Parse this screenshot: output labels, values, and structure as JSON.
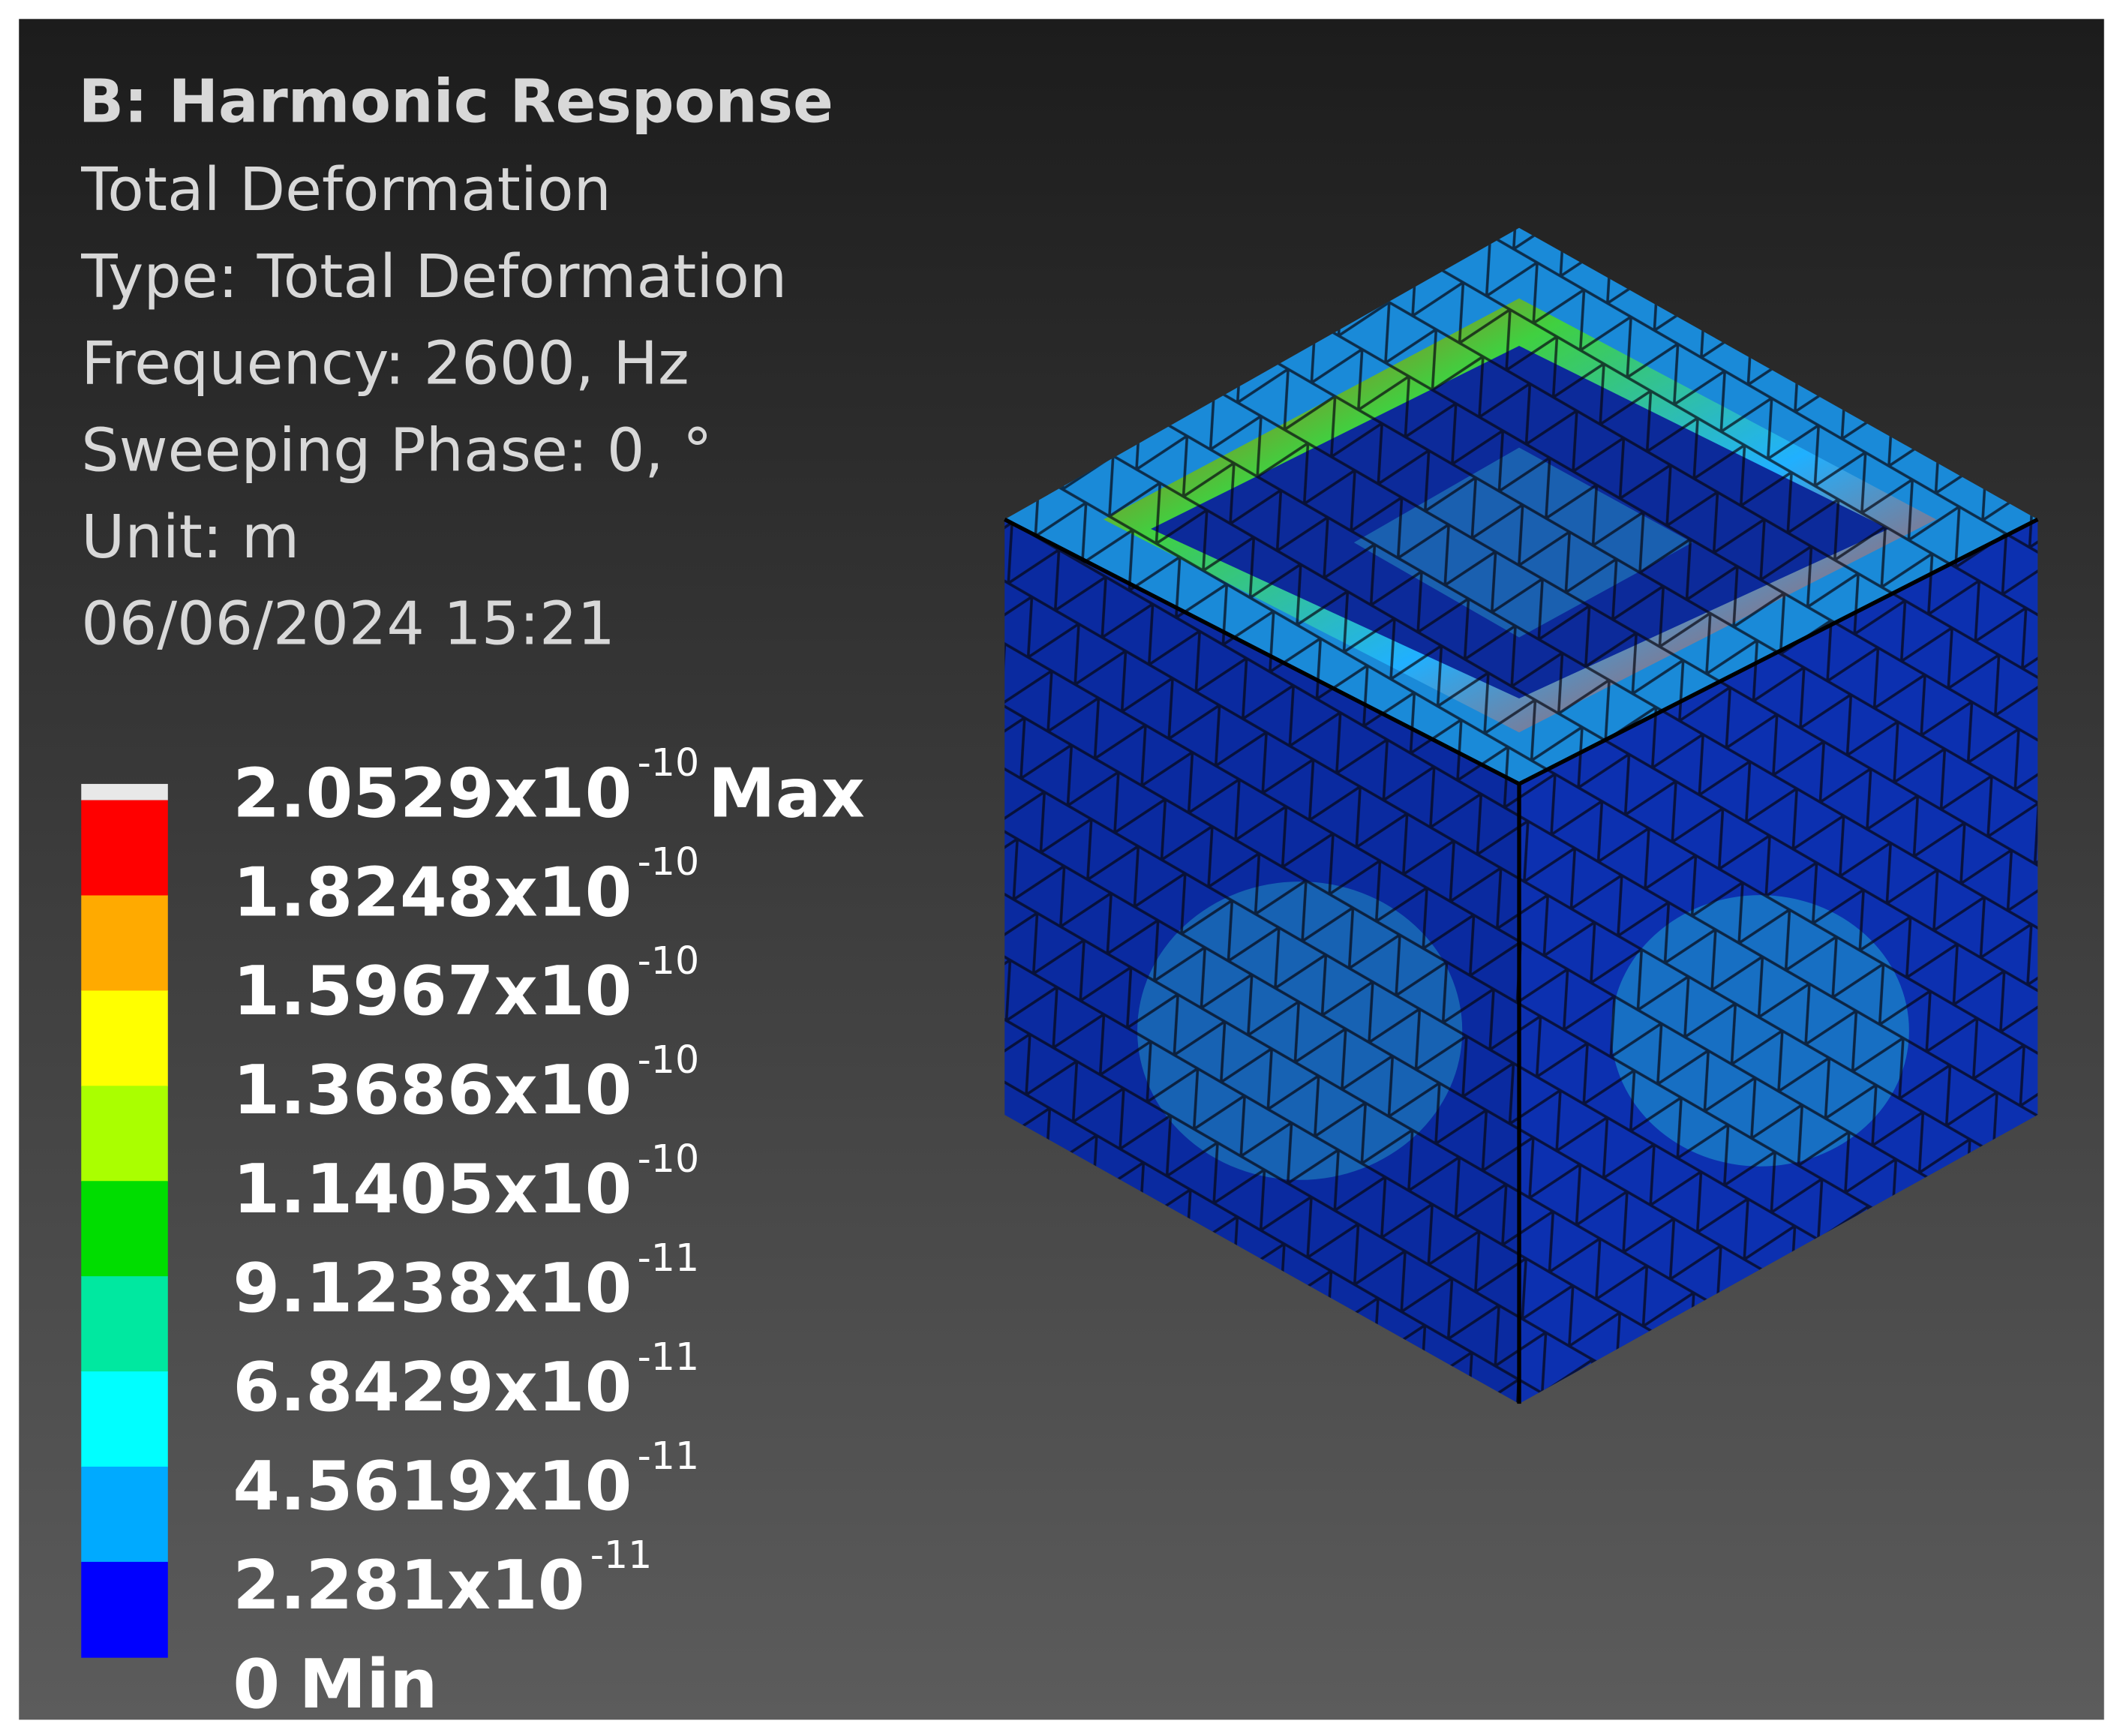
{
  "header": {
    "title": "B: Harmonic Response",
    "lines": [
      "Total Deformation",
      "Type: Total Deformation",
      "Frequency: 2600, Hz",
      "Sweeping Phase: 0, °",
      "Unit: m",
      "06/06/2024 15:21"
    ]
  },
  "legend": {
    "colors": [
      "#ff0000",
      "#ffaa00",
      "#ffff00",
      "#aaff00",
      "#00dd00",
      "#00e8a0",
      "#00ffff",
      "#00aaff",
      "#0000ff"
    ],
    "labels": [
      {
        "text": "2.0529x10",
        "exponent": "-10",
        "tag": "Max"
      },
      {
        "text": "1.8248x10",
        "exponent": "-10"
      },
      {
        "text": "1.5967x10",
        "exponent": "-10"
      },
      {
        "text": "1.3686x10",
        "exponent": "-10"
      },
      {
        "text": "1.1405x10",
        "exponent": "-10"
      },
      {
        "text": "9.1238x10",
        "exponent": "-11"
      },
      {
        "text": "6.8429x10",
        "exponent": "-11"
      },
      {
        "text": "4.5619x10",
        "exponent": "-11"
      },
      {
        "text": "2.281x10",
        "exponent": "-11"
      },
      {
        "text": "0",
        "tag": "Min"
      }
    ]
  }
}
